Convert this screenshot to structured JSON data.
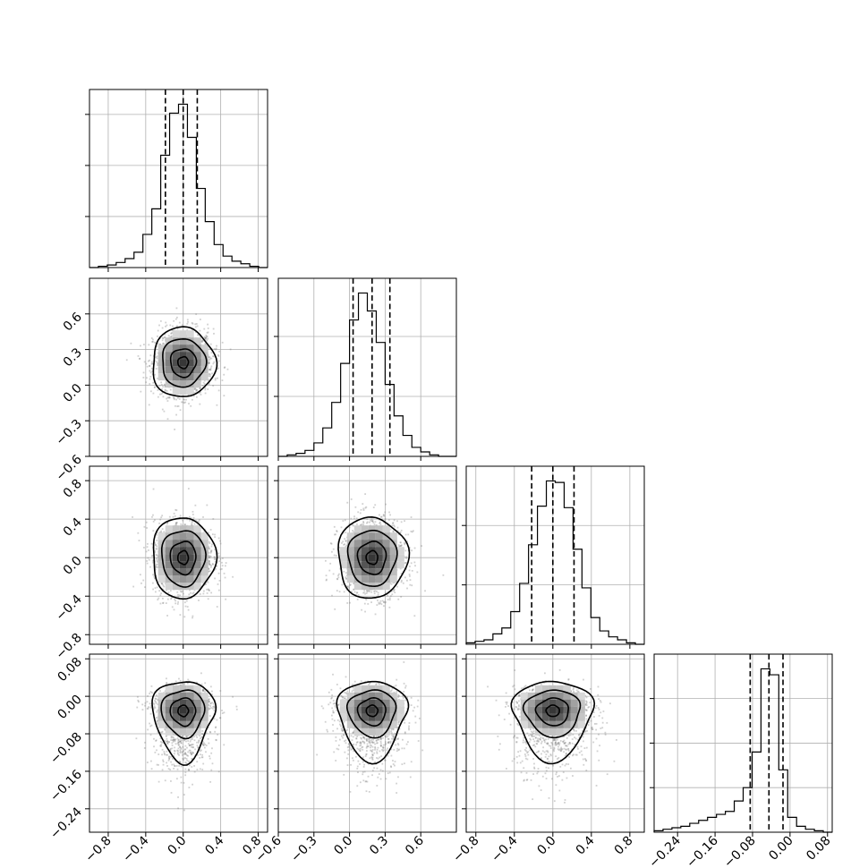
{
  "chart_data": {
    "type": "corner",
    "parameters": 4,
    "grid": true,
    "quantile_lines": "dashed",
    "axes": [
      {
        "range": [
          -1.0,
          0.9
        ],
        "ticks": [
          -0.8,
          -0.4,
          0.0,
          0.4,
          0.8
        ],
        "tick_labels": [
          "−0.8",
          "−0.4",
          "0.0",
          "0.4",
          "0.8"
        ],
        "center": 0.0,
        "sigma": 0.16,
        "quantiles": [
          -0.19,
          0.0,
          0.15
        ]
      },
      {
        "range": [
          -0.6,
          0.9
        ],
        "ticks": [
          -0.6,
          -0.3,
          0.0,
          0.3,
          0.6
        ],
        "tick_labels": [
          "−0.6",
          "−0.3",
          "0.0",
          "0.3",
          "0.6"
        ],
        "center": 0.19,
        "sigma": 0.14,
        "quantiles": [
          0.03,
          0.19,
          0.34
        ]
      },
      {
        "range": [
          -0.9,
          0.95
        ],
        "ticks": [
          -0.8,
          -0.4,
          0.0,
          0.4,
          0.8
        ],
        "tick_labels": [
          "−0.8",
          "−0.4",
          "0.0",
          "0.4",
          "0.8"
        ],
        "center": 0.0,
        "sigma": 0.2,
        "quantiles": [
          -0.22,
          0.0,
          0.22
        ]
      },
      {
        "range": [
          -0.29,
          0.09
        ],
        "ticks": [
          -0.24,
          -0.16,
          -0.08,
          0.0,
          0.08
        ],
        "tick_labels": [
          "−0.24",
          "−0.16",
          "−0.08",
          "0.00",
          "0.08"
        ],
        "center": -0.03,
        "sigma": 0.03,
        "quantiles": [
          -0.085,
          -0.045,
          -0.015
        ]
      }
    ],
    "histograms": [
      [
        0,
        1,
        2,
        4,
        7,
        12,
        26,
        46,
        88,
        121,
        128,
        102,
        62,
        36,
        18,
        9,
        5,
        3,
        1,
        0
      ],
      [
        0,
        1,
        2,
        4,
        9,
        19,
        36,
        62,
        91,
        109,
        97,
        76,
        48,
        27,
        14,
        6,
        3,
        1,
        0,
        0
      ],
      [
        1,
        2,
        3,
        7,
        11,
        22,
        41,
        67,
        93,
        110,
        109,
        92,
        64,
        38,
        18,
        9,
        5,
        3,
        1,
        0
      ],
      [
        1,
        2,
        3,
        4,
        6,
        8,
        10,
        12,
        14,
        21,
        30,
        54,
        110,
        106,
        42,
        10,
        4,
        2,
        1,
        0
      ]
    ]
  }
}
